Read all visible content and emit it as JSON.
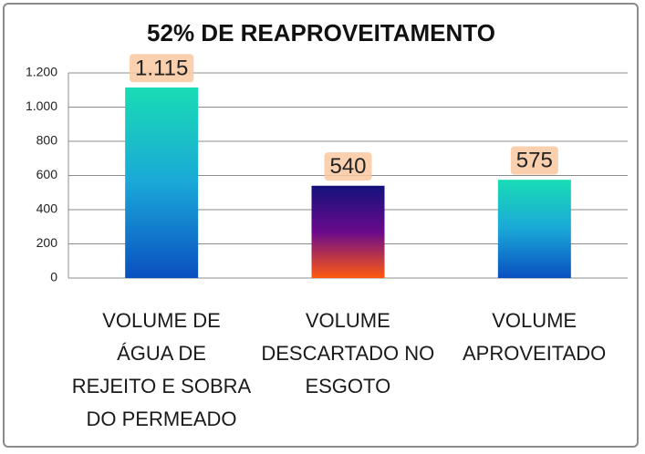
{
  "chart_data": {
    "type": "bar",
    "title": "52% DE REAPROVEITAMENTO",
    "categories": [
      "VOLUME DE\nÁGUA DE\nREJEITO E SOBRA\nDO PERMEADO",
      "VOLUME\nDESCARTADO NO\nESGOTO",
      "VOLUME\nAPROVEITADO"
    ],
    "values": [
      1115,
      540,
      575
    ],
    "value_labels": [
      "1.115",
      "540",
      "575"
    ],
    "colors": [
      [
        "#19dcb4",
        "#1aa8d8",
        "#0a4fc0"
      ],
      [
        "#12127a",
        "#6a0a8c",
        "#ff5a10"
      ],
      [
        "#19dcb4",
        "#1aa8d8",
        "#0a4fc0"
      ]
    ],
    "ylim": [
      0,
      1200
    ],
    "yticks": [
      0,
      200,
      400,
      600,
      800,
      {
        "value": 1000,
        "label": "1.000"
      },
      {
        "value": 1200,
        "label": "1.200"
      }
    ],
    "grid": true
  }
}
